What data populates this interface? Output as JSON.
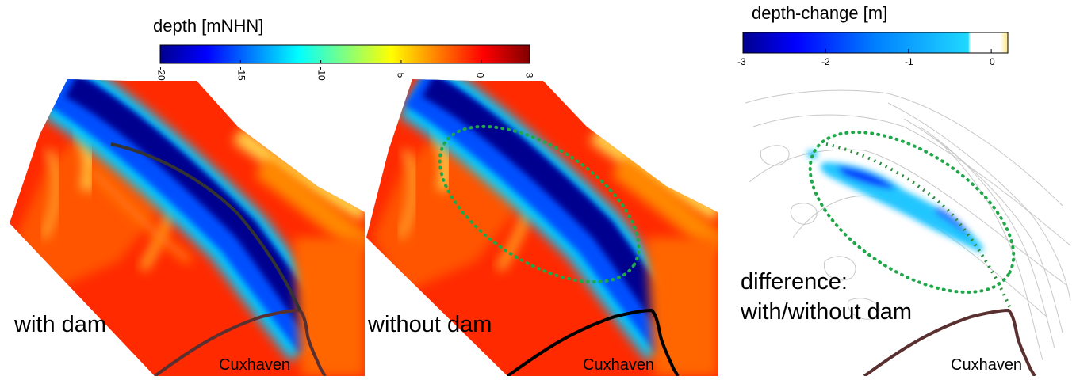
{
  "colorbars": {
    "depth": {
      "title": "depth  [mNHN]",
      "ticks": [
        "-20",
        "-15",
        "-10",
        "-5",
        "0",
        "3"
      ],
      "tick_values": [
        -20,
        -15,
        -10,
        -5,
        0,
        3
      ],
      "range": [
        -20,
        3
      ],
      "colors": [
        "#00008f",
        "#0000ff",
        "#0080ff",
        "#00ffff",
        "#80ff80",
        "#ffff00",
        "#ff8000",
        "#ff0000",
        "#800000"
      ]
    },
    "change": {
      "title": "depth-change  [m]",
      "ticks": [
        "-3",
        "-2",
        "-1",
        "0"
      ],
      "tick_values": [
        -3,
        -2,
        -1,
        0
      ],
      "range": [
        -3,
        0.2
      ],
      "colors": [
        "#00008f",
        "#0000ff",
        "#0080ff",
        "#00ffff",
        "#ffffff",
        "#ffff80"
      ]
    }
  },
  "panels": [
    {
      "label": "with dam",
      "city": "Cuxhaven",
      "dam": true,
      "ellipse": false
    },
    {
      "label": "without dam",
      "city": "Cuxhaven",
      "dam": false,
      "ellipse": true
    },
    {
      "label_line1": "difference:",
      "label_line2": "with/without dam",
      "city": "Cuxhaven",
      "dam": true,
      "ellipse": true
    }
  ],
  "colors": {
    "channel_deep": "#00008f",
    "flat_shallow": "#ff2a00",
    "ridge": "#ffd24a",
    "coast": "#5a2f2f",
    "dam": "#333333",
    "ellipse": "#1fa84a",
    "contour": "#c8c8c8"
  }
}
